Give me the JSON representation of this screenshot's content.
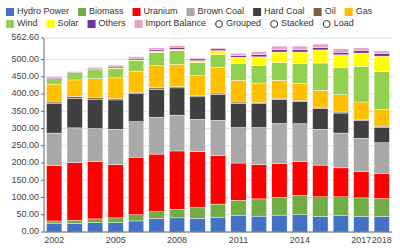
{
  "chart_data": {
    "type": "bar",
    "stacked": true,
    "categories": [
      "2002",
      null,
      null,
      "2005",
      null,
      null,
      "2008",
      null,
      null,
      "2011",
      null,
      null,
      "2014",
      null,
      null,
      "2017",
      "2018"
    ],
    "series": [
      {
        "name": "Hydro Power",
        "color": "#4472c4",
        "values": [
          24,
          25,
          27,
          27,
          32,
          39,
          41,
          40,
          43,
          47,
          46,
          49,
          50,
          45,
          47,
          45,
          45
        ]
      },
      {
        "name": "Biomass",
        "color": "#70ad47",
        "values": [
          8,
          9,
          11,
          14,
          18,
          20,
          25,
          32,
          38,
          45,
          50,
          52,
          56,
          57,
          55,
          54,
          52
        ]
      },
      {
        "name": "Uranium",
        "color": "#ff0000",
        "values": [
          160,
          167,
          166,
          154,
          167,
          167,
          169,
          161,
          141,
          108,
          99,
          97,
          98,
          92,
          84,
          76,
          72
        ]
      },
      {
        "name": "Brown Coal",
        "color": "#a9a9a9",
        "values": [
          95,
          101,
          96,
          103,
          103,
          107,
          104,
          94,
          102,
          103,
          108,
          117,
          110,
          104,
          101,
          97,
          90
        ]
      },
      {
        "name": "Hard Coal",
        "color": "#404040",
        "values": [
          85,
          86,
          85,
          85,
          81,
          81,
          79,
          65,
          75,
          70,
          69,
          70,
          65,
          61,
          58,
          52,
          45
        ]
      },
      {
        "name": "Oil",
        "color": "#7b6344",
        "values": [
          5,
          5,
          5,
          4,
          4,
          4,
          4,
          4,
          4,
          4,
          4,
          3,
          3,
          3,
          3,
          3,
          3
        ]
      },
      {
        "name": "Gas",
        "color": "#ffc000",
        "values": [
          52,
          48,
          55,
          60,
          61,
          64,
          64,
          57,
          74,
          63,
          56,
          52,
          49,
          49,
          50,
          50,
          48
        ]
      },
      {
        "name": "Wind",
        "color": "#92d050",
        "values": [
          16,
          18,
          25,
          27,
          31,
          39,
          40,
          38,
          37,
          48,
          50,
          51,
          57,
          79,
          78,
          103,
          110
        ]
      },
      {
        "name": "Solar",
        "color": "#ffff00",
        "values": [
          0,
          0,
          1,
          2,
          2,
          4,
          4,
          6,
          12,
          19,
          26,
          31,
          34,
          38,
          38,
          39,
          45
        ]
      },
      {
        "name": "Others",
        "color": "#7030a0",
        "values": [
          4,
          4,
          4,
          5,
          5,
          5,
          6,
          5,
          5,
          5,
          6,
          7,
          7,
          7,
          7,
          7,
          8
        ]
      },
      {
        "name": "Import Balance",
        "color": "#e8a0c8",
        "values": [
          2,
          2,
          3,
          3,
          4,
          4,
          4,
          3,
          3,
          6,
          9,
          10,
          10,
          10,
          10,
          8,
          7
        ]
      }
    ],
    "annotations": [
      "Grouped",
      "Stacked",
      "Load"
    ],
    "ylim": [
      0,
      562.6
    ],
    "yticks": [
      {
        "value": 0,
        "label": "0.00"
      },
      {
        "value": 50,
        "label": "50.00"
      },
      {
        "value": 100,
        "label": "100.00"
      },
      {
        "value": 150,
        "label": "150.00"
      },
      {
        "value": 200,
        "label": "200.00"
      },
      {
        "value": 250,
        "label": "250.00"
      },
      {
        "value": 300,
        "label": "300.00"
      },
      {
        "value": 350,
        "label": "350.00"
      },
      {
        "value": 400,
        "label": "400.00"
      },
      {
        "value": 450,
        "label": "450.00"
      },
      {
        "value": 500,
        "label": "500.00"
      },
      {
        "value": 562.6,
        "label": "562.60"
      }
    ],
    "grid": true,
    "legend": "top"
  }
}
